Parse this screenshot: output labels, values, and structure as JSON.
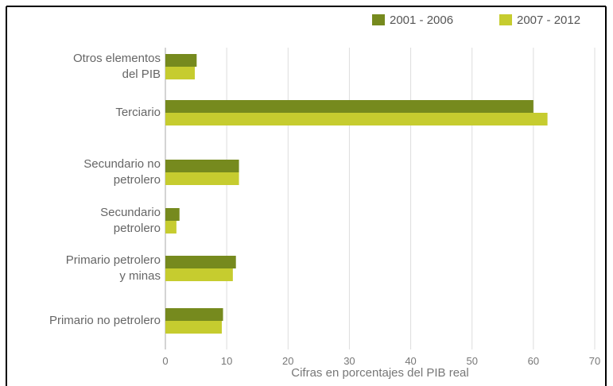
{
  "chart_data": {
    "type": "barh",
    "categories": [
      "Otros elementos\ndel PIB",
      "Terciario",
      "Secundario no\npetrolero",
      "Secundario\npetrolero",
      "Primario petrolero\ny minas",
      "Primario no petrolero"
    ],
    "series": [
      {
        "name": "2001 - 2006",
        "color": "#768a1e",
        "values": [
          5.1,
          60,
          12,
          2.3,
          11.5,
          9.4
        ]
      },
      {
        "name": "2007 - 2012",
        "color": "#c6cc2f",
        "values": [
          4.8,
          62.3,
          12,
          1.8,
          11,
          9.2
        ]
      }
    ],
    "x_label": "Cifras en porcentajes del PIB real",
    "xlim": [
      0,
      70
    ],
    "xticks": [
      0,
      10,
      20,
      30,
      40,
      50,
      60,
      70
    ],
    "grid": true
  }
}
